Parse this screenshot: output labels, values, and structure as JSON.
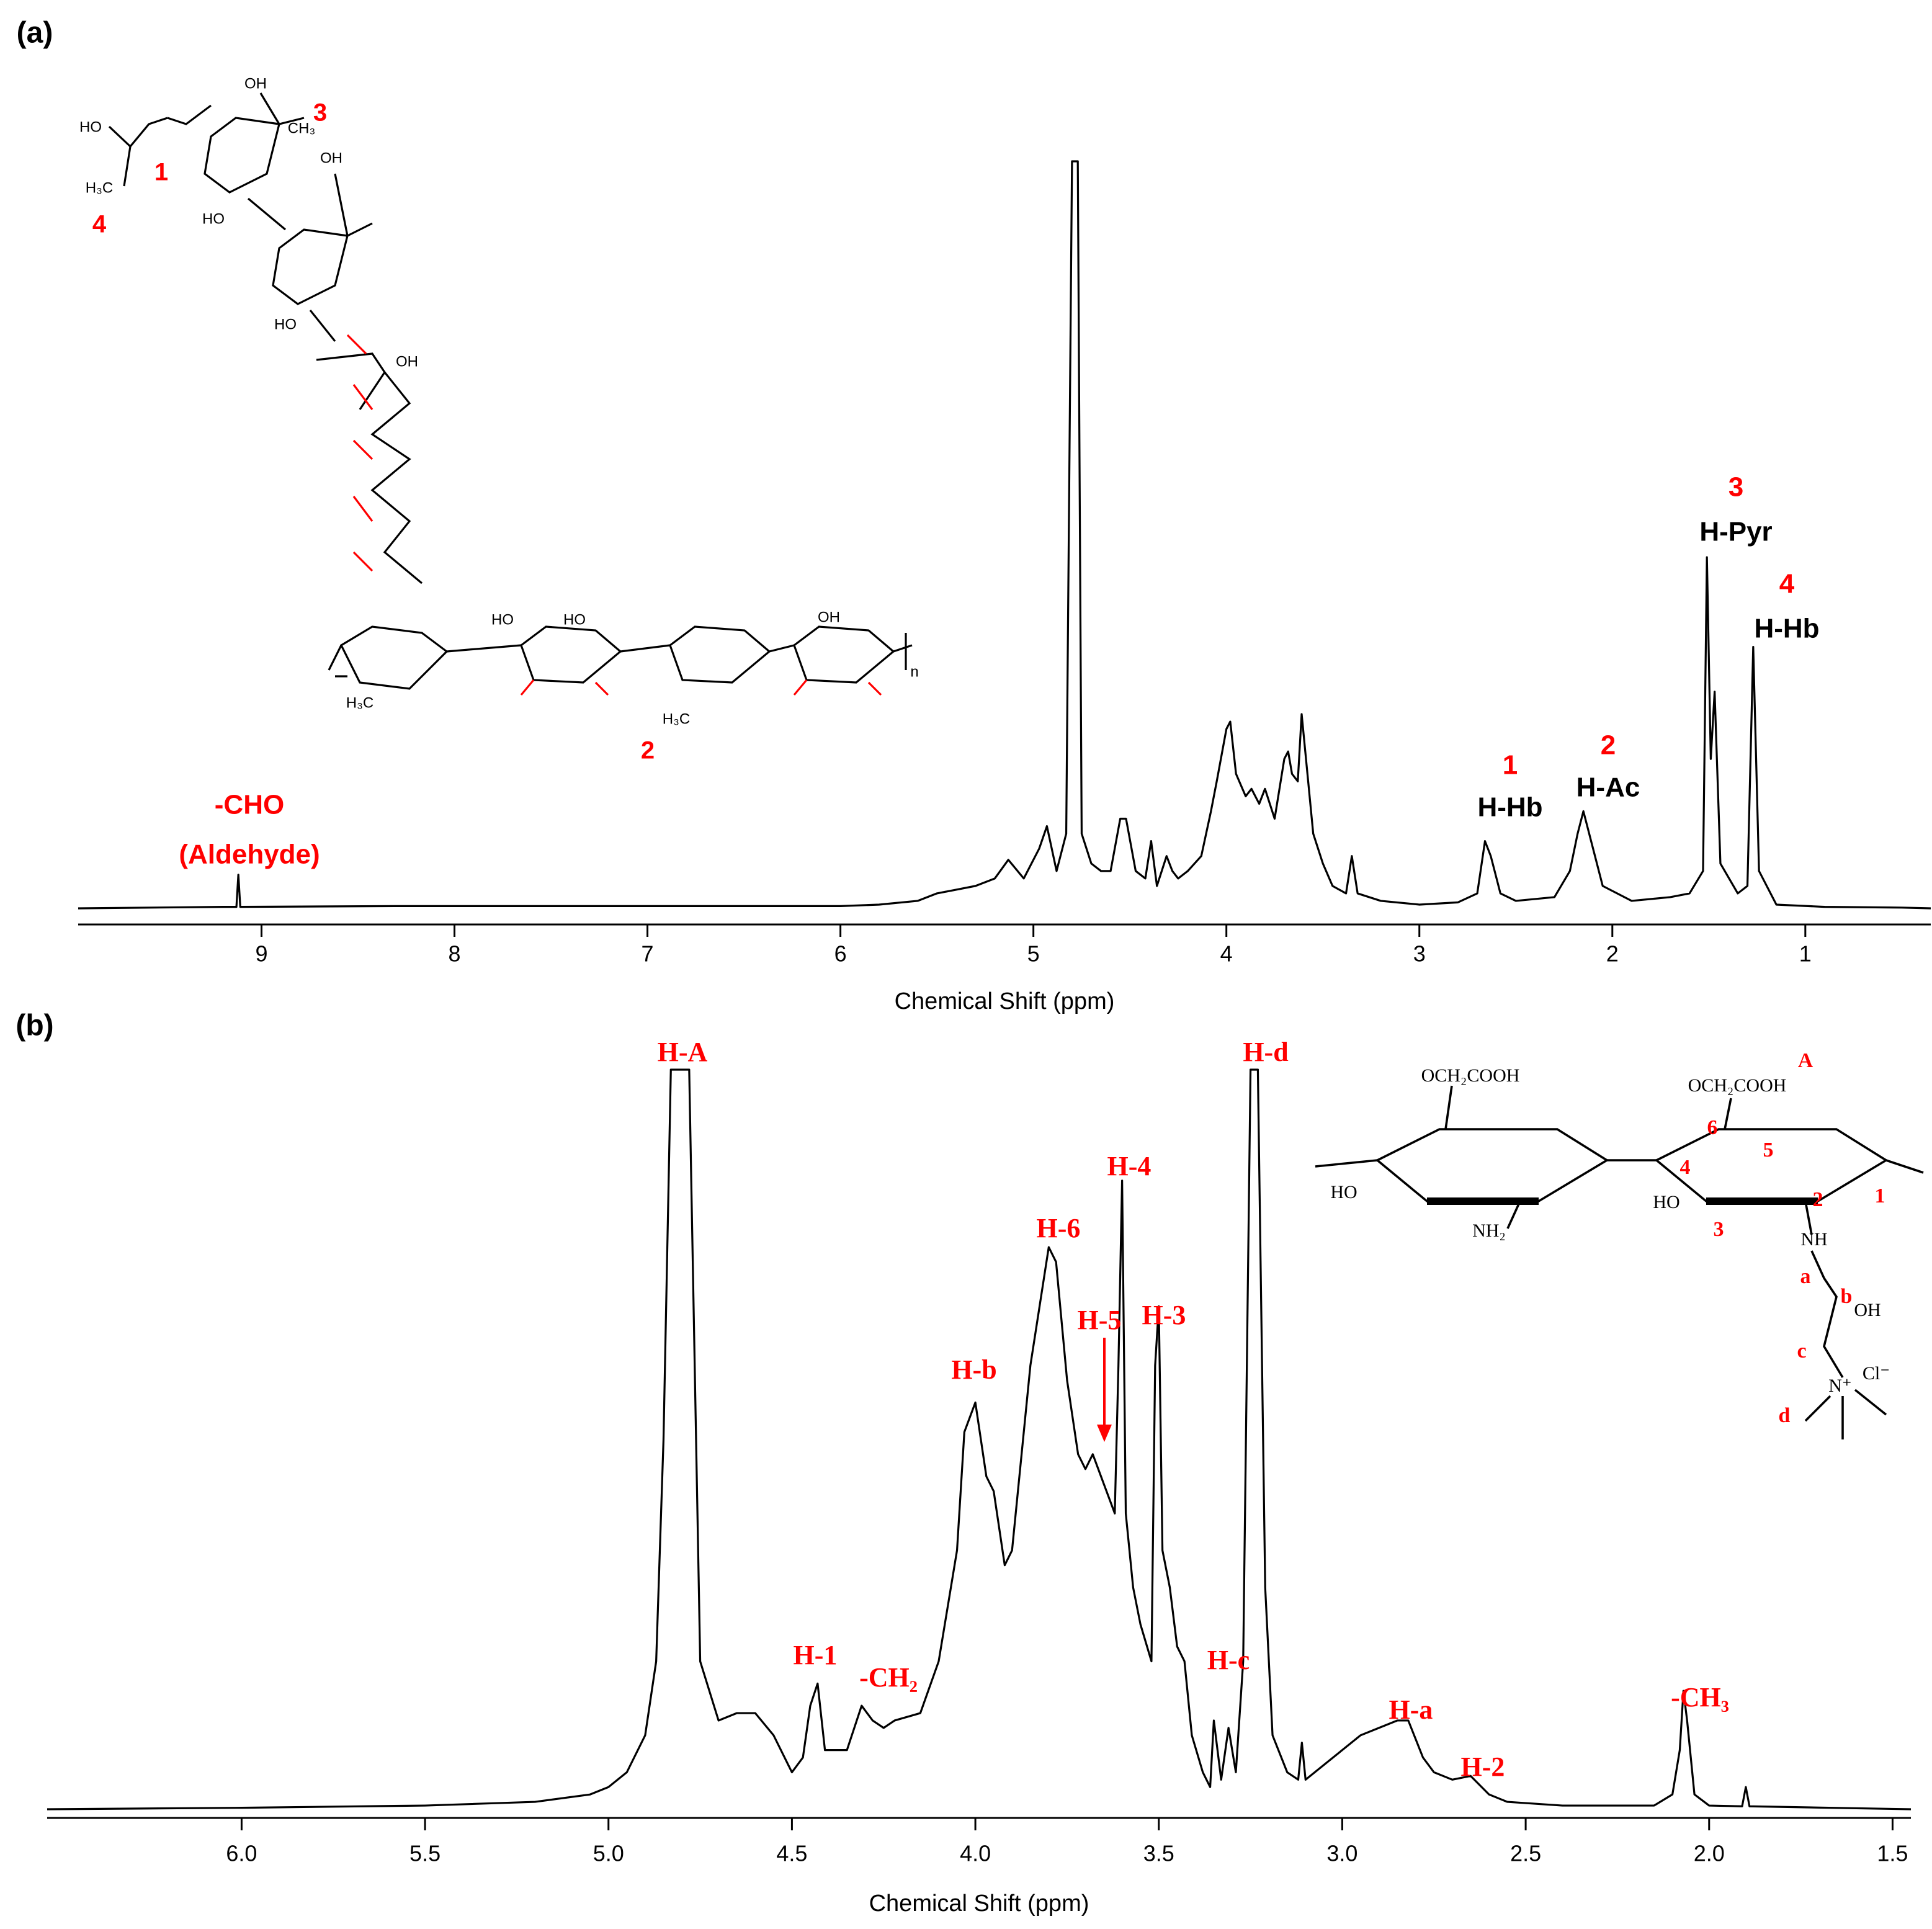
{
  "chart_data": [
    {
      "type": "line",
      "panel_label": "(a)",
      "xlabel": "Chemical Shift (ppm)",
      "color": "#000000",
      "xlim": [
        9.95,
        0.35
      ],
      "ylim": [
        0,
        100
      ],
      "xticks": [
        9,
        8,
        7,
        6,
        5,
        4,
        3,
        2,
        1
      ],
      "x": [
        9.95,
        9.2,
        9.13,
        9.12,
        9.11,
        8.3,
        6.0,
        5.8,
        5.6,
        5.5,
        5.4,
        5.3,
        5.2,
        5.13,
        5.05,
        4.97,
        4.93,
        4.88,
        4.83,
        4.8,
        4.79,
        4.77,
        4.75,
        4.7,
        4.65,
        4.6,
        4.55,
        4.52,
        4.47,
        4.42,
        4.39,
        4.36,
        4.31,
        4.28,
        4.25,
        4.2,
        4.13,
        4.08,
        4.05,
        4.0,
        3.98,
        3.95,
        3.9,
        3.87,
        3.83,
        3.8,
        3.75,
        3.7,
        3.68,
        3.66,
        3.63,
        3.61,
        3.58,
        3.55,
        3.5,
        3.45,
        3.38,
        3.35,
        3.32,
        3.2,
        3.0,
        2.8,
        2.7,
        2.66,
        2.63,
        2.58,
        2.5,
        2.3,
        2.22,
        2.18,
        2.15,
        2.1,
        2.05,
        1.9,
        1.7,
        1.6,
        1.53,
        1.51,
        1.49,
        1.47,
        1.44,
        1.35,
        1.3,
        1.27,
        1.24,
        1.15,
        0.9,
        0.5,
        0.35
      ],
      "values": [
        0,
        0.2,
        0.2,
        4.5,
        0.2,
        0.3,
        0.3,
        0.5,
        1,
        2,
        2.5,
        3,
        4,
        6.5,
        4,
        8,
        11,
        5,
        10,
        100,
        100,
        100,
        10,
        6,
        5,
        5,
        12,
        12,
        5,
        4,
        9,
        3,
        7,
        5,
        4,
        5,
        7,
        13,
        17,
        24,
        25,
        18,
        15,
        16,
        14,
        16,
        12,
        20,
        21,
        18,
        17,
        26,
        18,
        10,
        6,
        3,
        2,
        7,
        2,
        1,
        0.5,
        0.8,
        2,
        9,
        7,
        2,
        1,
        1.5,
        5,
        10,
        13,
        8,
        3,
        1,
        1.5,
        2,
        5,
        47,
        20,
        29,
        6,
        2,
        3,
        35,
        5,
        0.5,
        0.2,
        0.1,
        0
      ],
      "annotations": [
        {
          "text": "-CHO",
          "color": "#ff0000"
        },
        {
          "text": "(Aldehyde)",
          "color": "#ff0000"
        },
        {
          "text": "1",
          "color": "#ff0000"
        },
        {
          "text": "H-Hb",
          "color": "#000000"
        },
        {
          "text": "2",
          "color": "#ff0000"
        },
        {
          "text": "H-Ac",
          "color": "#000000"
        },
        {
          "text": "3",
          "color": "#ff0000"
        },
        {
          "text": "H-Pyr",
          "color": "#000000"
        },
        {
          "text": "4",
          "color": "#ff0000"
        },
        {
          "text": "H-Hb",
          "color": "#000000"
        }
      ],
      "structure_labels": [
        {
          "text": "1",
          "color": "#ff0000"
        },
        {
          "text": "2",
          "color": "#ff0000"
        },
        {
          "text": "3",
          "color": "#ff0000"
        },
        {
          "text": "4",
          "color": "#ff0000"
        },
        {
          "text": "HO",
          "color": "#000000"
        },
        {
          "text": "OH",
          "color": "#000000"
        },
        {
          "text": "OH",
          "color": "#000000"
        },
        {
          "text": "HO",
          "color": "#000000"
        },
        {
          "text": "HO",
          "color": "#000000"
        },
        {
          "text": "OH",
          "color": "#000000"
        },
        {
          "text": "HO",
          "color": "#000000"
        },
        {
          "text": "HO",
          "color": "#000000"
        },
        {
          "text": "OH",
          "color": "#000000"
        },
        {
          "text": "H₃C",
          "color": "#000000"
        },
        {
          "text": "CH₃",
          "color": "#000000"
        },
        {
          "text": "H₃C",
          "color": "#000000"
        },
        {
          "text": "H₃C",
          "color": "#000000"
        },
        {
          "text": "n",
          "color": "#000000"
        }
      ]
    },
    {
      "type": "line",
      "panel_label": "(b)",
      "xlabel": "Chemical Shift (ppm)",
      "color": "#000000",
      "xlim": [
        6.53,
        1.45
      ],
      "ylim": [
        0,
        100
      ],
      "xticks": [
        {
          "value": 6,
          "label": "6.0"
        },
        5.5,
        {
          "value": 5,
          "label": "5.0"
        },
        4.5,
        {
          "value": 4,
          "label": "4.0"
        },
        3.5,
        {
          "value": 3,
          "label": "3.0"
        },
        2.5,
        {
          "value": 2,
          "label": "2.0"
        },
        1.5
      ],
      "x": [
        6.53,
        6.0,
        5.5,
        5.2,
        5.05,
        5.0,
        4.95,
        4.9,
        4.87,
        4.85,
        4.83,
        4.8,
        4.78,
        4.75,
        4.7,
        4.65,
        4.6,
        4.55,
        4.5,
        4.47,
        4.45,
        4.43,
        4.41,
        4.38,
        4.35,
        4.31,
        4.28,
        4.25,
        4.22,
        4.15,
        4.1,
        4.05,
        4.03,
        4.0,
        3.97,
        3.95,
        3.92,
        3.9,
        3.85,
        3.8,
        3.78,
        3.75,
        3.72,
        3.7,
        3.68,
        3.65,
        3.62,
        3.61,
        3.6,
        3.59,
        3.57,
        3.55,
        3.52,
        3.51,
        3.5,
        3.49,
        3.47,
        3.45,
        3.43,
        3.41,
        3.38,
        3.36,
        3.35,
        3.33,
        3.31,
        3.29,
        3.27,
        3.25,
        3.24,
        3.23,
        3.21,
        3.19,
        3.15,
        3.12,
        3.11,
        3.1,
        3.05,
        3.0,
        2.95,
        2.9,
        2.85,
        2.82,
        2.78,
        2.75,
        2.7,
        2.65,
        2.6,
        2.55,
        2.4,
        2.15,
        2.1,
        2.08,
        2.07,
        2.06,
        2.04,
        2.0,
        1.91,
        1.9,
        1.89,
        1.45
      ],
      "values": [
        0,
        0.2,
        0.5,
        1,
        2,
        3,
        5,
        10,
        20,
        50,
        100,
        100,
        100,
        20,
        12,
        13,
        13,
        10,
        5,
        7,
        14,
        17,
        8,
        8,
        8,
        14,
        12,
        11,
        12,
        13,
        20,
        35,
        51,
        55,
        45,
        43,
        33,
        35,
        60,
        76,
        74,
        58,
        48,
        46,
        48,
        44,
        40,
        60,
        85,
        40,
        30,
        25,
        20,
        60,
        68,
        35,
        30,
        22,
        20,
        10,
        5,
        3,
        12,
        4,
        11,
        5,
        20,
        100,
        100,
        100,
        30,
        10,
        5,
        4,
        9,
        4,
        6,
        8,
        10,
        11,
        12,
        12,
        7,
        5,
        4,
        4.5,
        2,
        1,
        0.5,
        0.5,
        2,
        8,
        16,
        12,
        2,
        0.5,
        0.4,
        3,
        0.4,
        0
      ],
      "annotations": [
        {
          "text": "H-A",
          "color": "#ff0000"
        },
        {
          "text": "H-d",
          "color": "#ff0000"
        },
        {
          "text": "H-4",
          "color": "#ff0000"
        },
        {
          "text": "H-6",
          "color": "#ff0000"
        },
        {
          "text": "H-5",
          "color": "#ff0000"
        },
        {
          "text": "H-3",
          "color": "#ff0000"
        },
        {
          "text": "H-b",
          "color": "#ff0000"
        },
        {
          "text": "H-1",
          "color": "#ff0000"
        },
        {
          "text": "-CH₂",
          "color": "#ff0000"
        },
        {
          "text": "H-c",
          "color": "#ff0000"
        },
        {
          "text": "H-a",
          "color": "#ff0000"
        },
        {
          "text": "H-2",
          "color": "#ff0000"
        },
        {
          "text": "-CH₃",
          "color": "#ff0000"
        }
      ],
      "structure_labels": [
        {
          "text": "OCH₂COOH",
          "color": "#000000"
        },
        {
          "text": "OCH₂COOH",
          "color": "#000000"
        },
        {
          "text": "A",
          "color": "#ff0000"
        },
        {
          "text": "HO",
          "color": "#000000"
        },
        {
          "text": "NH₂",
          "color": "#000000"
        },
        {
          "text": "HO",
          "color": "#000000"
        },
        {
          "text": "NH",
          "color": "#000000"
        },
        {
          "text": "OH",
          "color": "#000000"
        },
        {
          "text": "N⁺",
          "color": "#000000"
        },
        {
          "text": "Cl⁻",
          "color": "#000000"
        },
        {
          "text": "6",
          "color": "#ff0000"
        },
        {
          "text": "5",
          "color": "#ff0000"
        },
        {
          "text": "4",
          "color": "#ff0000"
        },
        {
          "text": "2",
          "color": "#ff0000"
        },
        {
          "text": "1",
          "color": "#ff0000"
        },
        {
          "text": "3",
          "color": "#ff0000"
        },
        {
          "text": "a",
          "color": "#ff0000"
        },
        {
          "text": "b",
          "color": "#ff0000"
        },
        {
          "text": "c",
          "color": "#ff0000"
        },
        {
          "text": "d",
          "color": "#ff0000"
        }
      ]
    }
  ]
}
